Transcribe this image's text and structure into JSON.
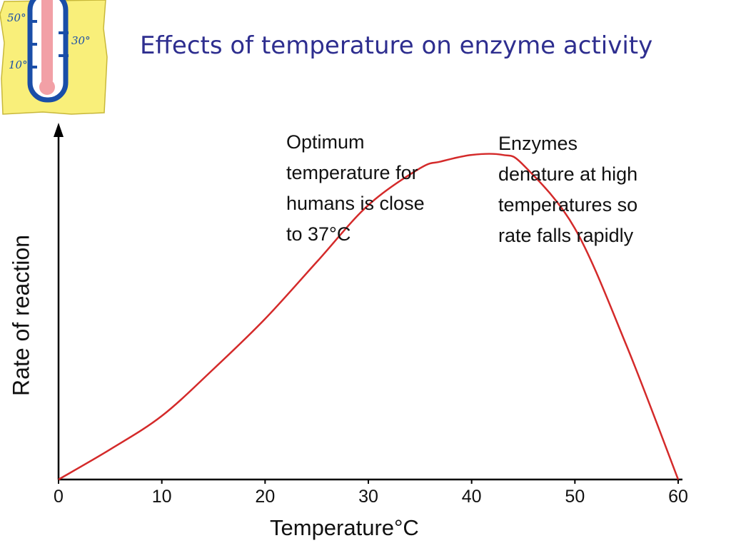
{
  "slide": {
    "title": "Effects of temperature on enzyme activity"
  },
  "thermometer": {
    "labels": [
      "50°",
      "30°",
      "10°"
    ],
    "colors": {
      "card": "#f9ef7a",
      "tube": "#1a4ea8",
      "mercury": "#f2a0a6"
    }
  },
  "chart_data": {
    "type": "line",
    "title": "",
    "xlabel": "Temperature°C",
    "ylabel": "Rate of reaction",
    "xlim": [
      0,
      60
    ],
    "ylim": [
      0,
      100
    ],
    "x_ticks": [
      "0",
      "10",
      "20",
      "30",
      "40",
      "50",
      "60"
    ],
    "grid": false,
    "legend": "none",
    "line_color": "#d42a2a",
    "series": [
      {
        "x": [
          0,
          5,
          10,
          15,
          20,
          25,
          30,
          35,
          37,
          40,
          43,
          45,
          50,
          55,
          60
        ],
        "y": [
          0,
          9,
          19,
          33,
          48,
          65,
          82,
          93,
          95,
          97,
          97,
          94,
          75,
          40,
          0
        ]
      }
    ],
    "annotations": [
      {
        "text": "Optimum\ntemperature for\nhumans is close\nto 37°C"
      },
      {
        "text": "Enzymes\ndenature at high\ntemperatures so\nrate falls rapidly"
      }
    ]
  }
}
